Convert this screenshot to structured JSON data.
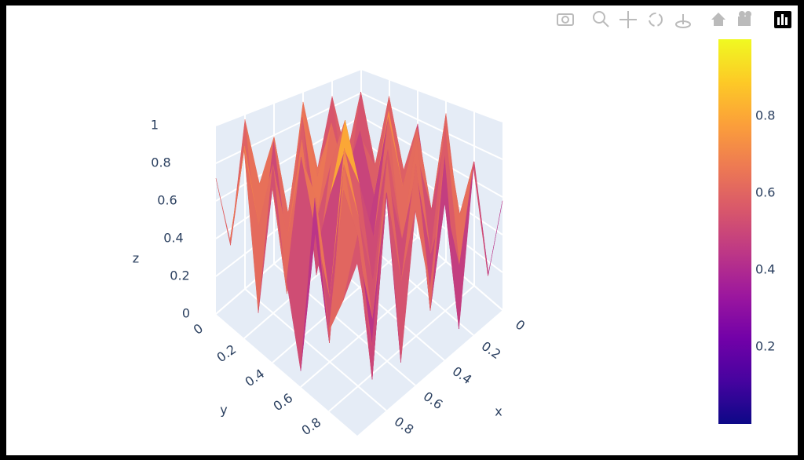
{
  "chart_data": {
    "type": "surface",
    "x": [
      0,
      0.1,
      0.2,
      0.3,
      0.4,
      0.5,
      0.6,
      0.7,
      0.8,
      0.9,
      1
    ],
    "y": [
      0,
      0.1,
      0.2,
      0.3,
      0.4,
      0.5,
      0.6,
      0.7,
      0.8,
      0.9,
      1
    ],
    "z": [
      [
        0.62,
        0.35,
        0.88,
        0.41,
        0.93,
        0.22,
        0.79,
        0.55,
        0.97,
        0.31,
        0.72
      ],
      [
        0.28,
        0.91,
        0.15,
        0.76,
        0.48,
        0.95,
        0.37,
        0.84,
        0.19,
        0.89,
        0.44
      ],
      [
        0.85,
        0.42,
        0.69,
        0.12,
        0.87,
        0.33,
        0.98,
        0.26,
        0.74,
        0.51,
        0.93
      ],
      [
        0.39,
        0.96,
        0.24,
        0.82,
        0.58,
        0.71,
        0.14,
        0.92,
        0.45,
        0.86,
        0.18
      ],
      [
        0.77,
        0.21,
        0.94,
        0.47,
        0.09,
        0.99,
        0.63,
        0.36,
        0.88,
        0.27,
        0.81
      ],
      [
        0.16,
        0.83,
        0.52,
        0.97,
        0.34,
        0.68,
        0.89,
        0.11,
        0.73,
        0.95,
        0.42
      ],
      [
        0.92,
        0.38,
        0.75,
        0.23,
        0.86,
        0.17,
        0.54,
        0.96,
        0.29,
        0.64,
        0.07
      ],
      [
        0.25,
        0.87,
        0.11,
        0.91,
        0.43,
        0.78,
        0.32,
        0.67,
        0.94,
        0.19,
        0.85
      ],
      [
        0.71,
        0.46,
        0.98,
        0.35,
        0.81,
        0.05,
        0.93,
        0.24,
        0.58,
        0.88,
        0.33
      ],
      [
        0.13,
        0.79,
        0.29,
        0.66,
        0.18,
        0.91,
        0.41,
        0.84,
        0.08,
        0.72,
        0.49
      ],
      [
        0.58,
        0.24,
        0.83,
        0.09,
        0.95,
        0.37,
        0.76,
        0.15,
        0.89,
        0.31,
        0.67
      ]
    ],
    "xlim": [
      0,
      1
    ],
    "ylim": [
      0,
      1
    ],
    "zlim": [
      0,
      1
    ],
    "xticks": [
      0,
      0.2,
      0.4,
      0.6,
      0.8
    ],
    "yticks": [
      0,
      0.2,
      0.4,
      0.6,
      0.8
    ],
    "zticks": [
      0,
      0.2,
      0.4,
      0.6,
      0.8,
      1
    ],
    "xlabel": "x",
    "ylabel": "y",
    "zlabel": "z",
    "colorscale": [
      "#0d0887",
      "#46039f",
      "#7201a8",
      "#9c179e",
      "#bd3786",
      "#d8576b",
      "#ed7953",
      "#fb9f3a",
      "#fdca26",
      "#f0f921"
    ],
    "colorbar": {
      "range": [
        0,
        1
      ],
      "ticks": [
        0.2,
        0.4,
        0.6,
        0.8
      ]
    }
  }
}
